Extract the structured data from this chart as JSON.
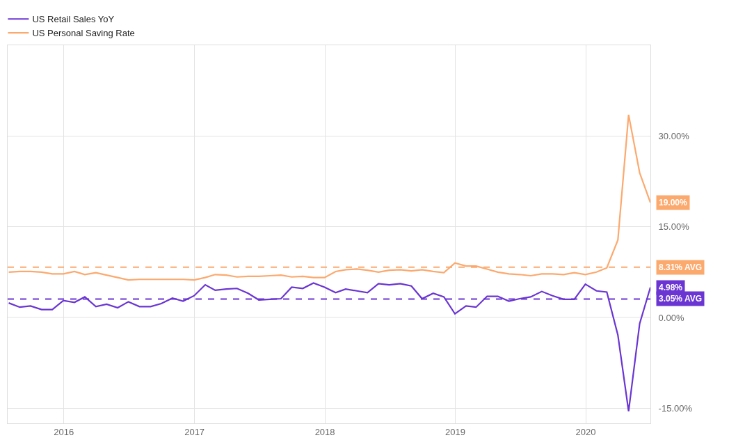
{
  "chart_data": {
    "type": "line",
    "x": [
      "2015-07-31",
      "2015-08-31",
      "2015-09-30",
      "2015-10-31",
      "2015-11-30",
      "2015-12-31",
      "2016-01-31",
      "2016-02-29",
      "2016-03-31",
      "2016-04-30",
      "2016-05-31",
      "2016-06-30",
      "2016-07-31",
      "2016-08-31",
      "2016-09-30",
      "2016-10-31",
      "2016-11-30",
      "2016-12-31",
      "2017-01-31",
      "2017-02-28",
      "2017-03-31",
      "2017-04-30",
      "2017-05-31",
      "2017-06-30",
      "2017-07-31",
      "2017-08-31",
      "2017-09-30",
      "2017-10-31",
      "2017-11-30",
      "2017-12-31",
      "2018-01-31",
      "2018-02-28",
      "2018-03-31",
      "2018-04-30",
      "2018-05-31",
      "2018-06-30",
      "2018-07-31",
      "2018-08-31",
      "2018-09-30",
      "2018-10-31",
      "2018-11-30",
      "2018-12-31",
      "2019-01-31",
      "2019-02-28",
      "2019-03-31",
      "2019-04-30",
      "2019-05-31",
      "2019-06-30",
      "2019-07-31",
      "2019-08-31",
      "2019-09-30",
      "2019-10-31",
      "2019-11-30",
      "2019-12-31",
      "2020-01-31",
      "2020-02-29",
      "2020-03-31",
      "2020-04-30",
      "2020-05-31",
      "2020-06-30"
    ],
    "series": [
      {
        "name": "US Retail Sales YoY",
        "color": "#6a35d3",
        "values": [
          2.4,
          1.7,
          1.9,
          1.3,
          1.3,
          2.8,
          2.5,
          3.4,
          1.8,
          2.2,
          1.6,
          2.6,
          1.8,
          1.8,
          2.3,
          3.2,
          2.7,
          3.6,
          5.4,
          4.5,
          4.7,
          4.8,
          4.0,
          2.9,
          3.0,
          3.1,
          5.0,
          4.8,
          5.7,
          5.0,
          4.1,
          4.7,
          4.4,
          4.1,
          5.6,
          5.4,
          5.6,
          5.2,
          3.1,
          4.0,
          3.4,
          0.6,
          1.9,
          1.7,
          3.5,
          3.5,
          2.7,
          3.1,
          3.4,
          4.3,
          3.6,
          3.0,
          3.0,
          5.5,
          4.4,
          4.2,
          -2.9,
          -15.5,
          -1.0,
          4.98
        ]
      },
      {
        "name": "US Personal Saving Rate",
        "color": "#fca96e",
        "values": [
          7.5,
          7.6,
          7.6,
          7.5,
          7.2,
          7.2,
          7.6,
          7.1,
          7.4,
          7.0,
          6.6,
          6.2,
          6.3,
          6.3,
          6.3,
          6.3,
          6.3,
          6.2,
          6.6,
          7.1,
          7.0,
          6.7,
          6.8,
          6.8,
          6.9,
          7.0,
          6.7,
          6.8,
          6.6,
          6.6,
          7.6,
          7.9,
          8.0,
          7.8,
          7.5,
          7.8,
          7.9,
          7.7,
          7.9,
          7.6,
          7.4,
          9.0,
          8.5,
          8.5,
          8.0,
          7.5,
          7.2,
          7.1,
          6.9,
          7.2,
          7.2,
          7.1,
          7.4,
          7.1,
          7.5,
          8.2,
          12.8,
          33.5,
          23.9,
          19.0
        ]
      }
    ],
    "xlim": [
      "2015-07-28",
      "2020-06-30"
    ],
    "xticks": [
      {
        "value": "2016-01-01",
        "label": "2016"
      },
      {
        "value": "2017-01-01",
        "label": "2017"
      },
      {
        "value": "2018-01-01",
        "label": "2018"
      },
      {
        "value": "2019-01-01",
        "label": "2019"
      },
      {
        "value": "2020-01-01",
        "label": "2020"
      }
    ],
    "ylim": [
      -17.5,
      45
    ],
    "yticks": [
      {
        "value": -15,
        "label": "-15.00%"
      },
      {
        "value": 0,
        "label": "0.00%"
      },
      {
        "value": 15,
        "label": "15.00%"
      },
      {
        "value": 30,
        "label": "30.00%"
      }
    ],
    "ref_lines": [
      {
        "axis": "y",
        "value": 8.31,
        "label": "8.31% AVG",
        "color": "#fca96e",
        "line_style": "dashed"
      },
      {
        "axis": "y",
        "value": 3.05,
        "label": "3.05% AVG",
        "color": "#6a35d3",
        "line_style": "dashed"
      }
    ],
    "annotations": [
      {
        "text": "19.00%",
        "x": "2020-06-30",
        "y": 19.0
      },
      {
        "text": "4.98%",
        "x": "2020-06-30",
        "y": 4.98
      }
    ],
    "grid": true,
    "legend": "top left",
    "marker": "none",
    "line_style": "solid"
  }
}
